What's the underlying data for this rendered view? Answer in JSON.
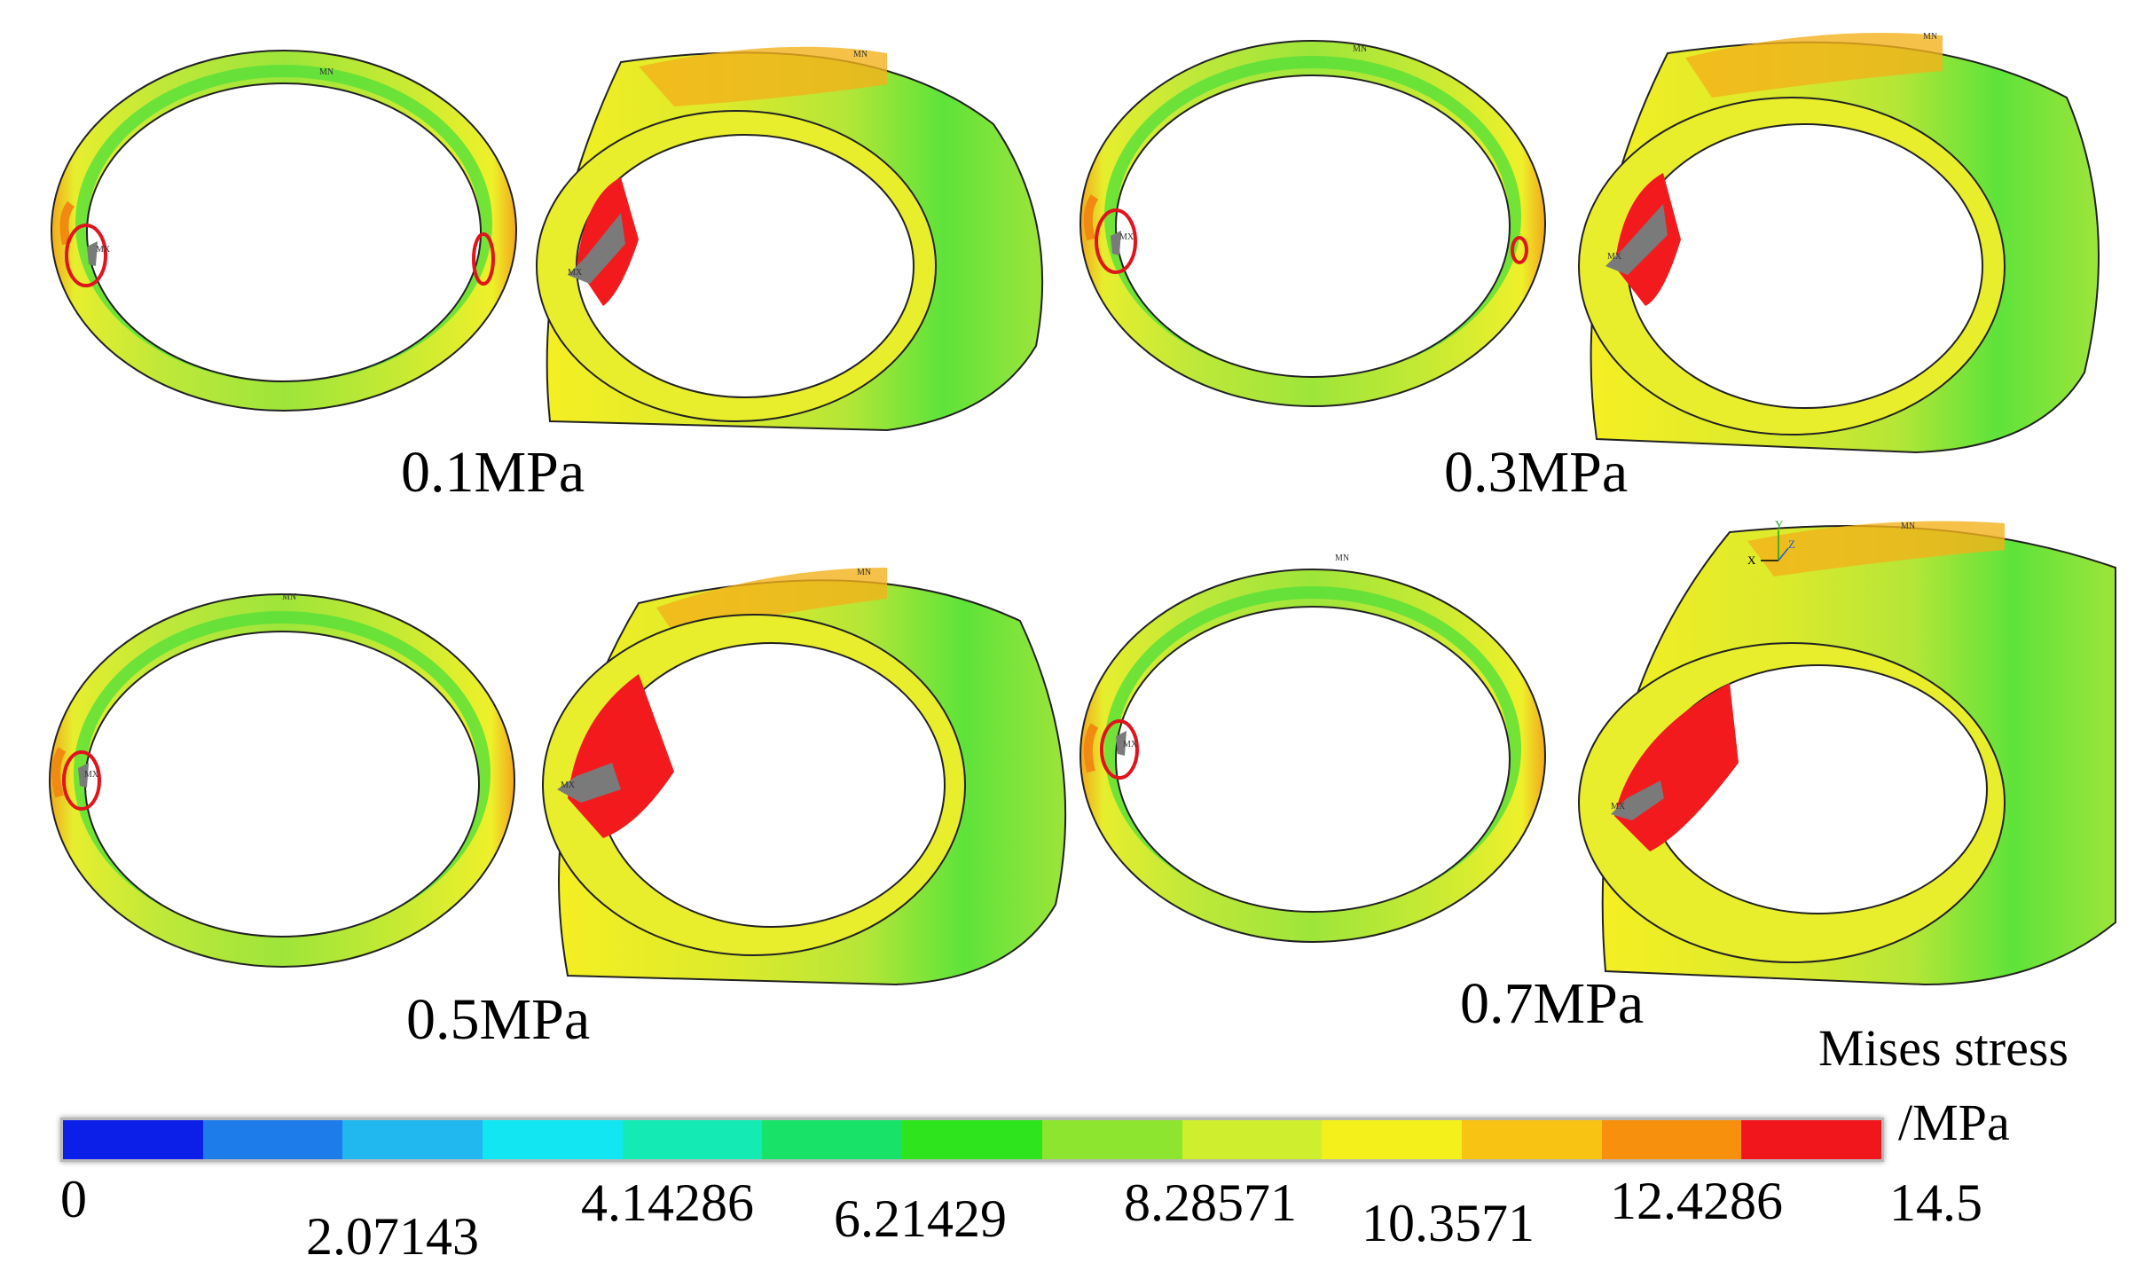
{
  "cases": [
    {
      "label": "0.1MPa",
      "max_tag": "MX",
      "min_tag": "MN"
    },
    {
      "label": "0.3MPa",
      "max_tag": "MX",
      "min_tag": "MN"
    },
    {
      "label": "0.5MPa",
      "max_tag": "MX",
      "min_tag": "MN"
    },
    {
      "label": "0.7MPa",
      "max_tag": "MX",
      "min_tag": "MN"
    }
  ],
  "legend": {
    "title_line1": "Mises stress",
    "title_line2": "/MPa",
    "ticks": [
      "0",
      "2.07143",
      "4.14286",
      "6.21429",
      "8.28571",
      "10.3571",
      "12.4286",
      "14.5"
    ],
    "colors": [
      "#0b1fe8",
      "#1e7bea",
      "#21b7ef",
      "#11e6f2",
      "#14ebb4",
      "#18e368",
      "#2ee51d",
      "#8ee52f",
      "#cfee2d",
      "#f4f01b",
      "#f8c312",
      "#f7900c",
      "#f0161b"
    ]
  },
  "triad": {
    "x": "X",
    "y": "Y",
    "z": "Z"
  }
}
